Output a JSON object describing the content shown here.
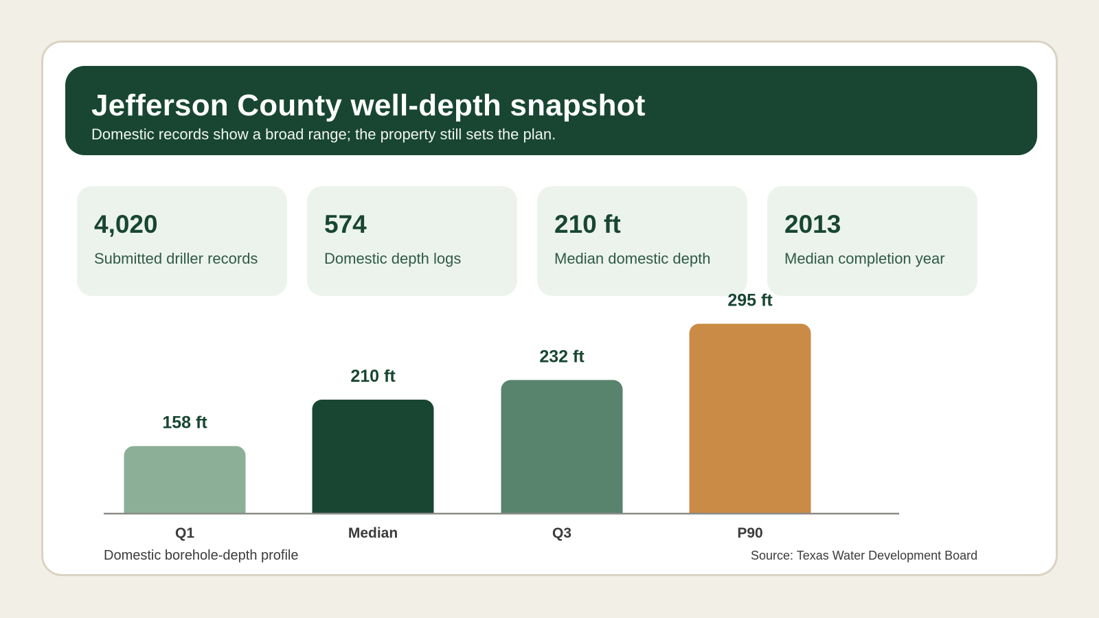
{
  "header": {
    "title": "Jefferson County well-depth snapshot",
    "subtitle": "Domestic records show a broad range; the property still sets the plan."
  },
  "kpis": [
    {
      "value": "4,020",
      "label": "Submitted driller records"
    },
    {
      "value": "574",
      "label": "Domestic depth logs"
    },
    {
      "value": "210 ft",
      "label": "Median domestic depth"
    },
    {
      "value": "2013",
      "label": "Median completion year"
    }
  ],
  "colors": {
    "dark_green": "#184632",
    "light_green": "#8caf98",
    "mid_green": "#58836d",
    "orange": "#c98b46",
    "axis": "#8a8a86"
  },
  "footer": {
    "chart_caption": "Domestic borehole-depth profile",
    "source": "Source: Texas Water Development Board"
  },
  "chart_data": {
    "type": "bar",
    "categories": [
      "Q1",
      "Median",
      "Q3",
      "P90"
    ],
    "values": [
      158,
      210,
      232,
      295
    ],
    "value_labels": [
      "158 ft",
      "210 ft",
      "232 ft",
      "295 ft"
    ],
    "bar_colors": [
      "#8caf98",
      "#184632",
      "#58836d",
      "#c98b46"
    ],
    "title": "",
    "xlabel": "",
    "ylabel": "",
    "grid": false
  }
}
